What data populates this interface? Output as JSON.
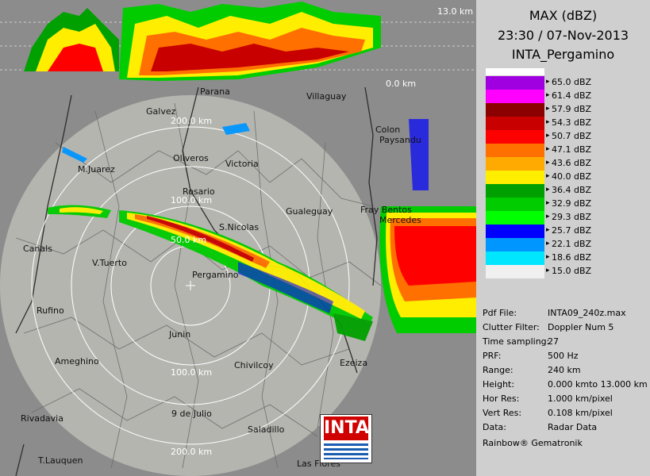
{
  "header": {
    "product": "MAX (dBZ)",
    "datetime": "23:30 / 07-Nov-2013",
    "station": "INTA_Pergamino"
  },
  "legend": [
    {
      "label": "65.0 dBZ",
      "color": "#a000e0"
    },
    {
      "label": "61.4 dBZ",
      "color": "#ff00ff"
    },
    {
      "label": "57.9 dBZ",
      "color": "#8b0000"
    },
    {
      "label": "54.3 dBZ",
      "color": "#c80000"
    },
    {
      "label": "50.7 dBZ",
      "color": "#ff0000"
    },
    {
      "label": "47.1 dBZ",
      "color": "#ff7000"
    },
    {
      "label": "43.6 dBZ",
      "color": "#ffaa00"
    },
    {
      "label": "40.0 dBZ",
      "color": "#ffee00"
    },
    {
      "label": "36.4 dBZ",
      "color": "#00a000"
    },
    {
      "label": "32.9 dBZ",
      "color": "#00cc00"
    },
    {
      "label": "29.3 dBZ",
      "color": "#00ff00"
    },
    {
      "label": "25.7 dBZ",
      "color": "#0000ff"
    },
    {
      "label": "22.1 dBZ",
      "color": "#0096ff"
    },
    {
      "label": "18.6 dBZ",
      "color": "#00e6ff"
    },
    {
      "label": "15.0 dBZ",
      "color": "#f0f0f0"
    }
  ],
  "info": [
    {
      "key": "Pdf File:",
      "value": "INTA09_240z.max"
    },
    {
      "key": "Clutter Filter:",
      "value": "Doppler Num 5"
    },
    {
      "key": "Time sampling:",
      "value": "27"
    },
    {
      "key": "PRF:",
      "value": "500 Hz"
    },
    {
      "key": "Range:",
      "value": "240 km"
    },
    {
      "key": "Height:",
      "value": "0.000 kmto 13.000 km"
    },
    {
      "key": "Hor Res:",
      "value": "1.000 km/pixel"
    },
    {
      "key": "Vert Res:",
      "value": "0.108 km/pixel"
    },
    {
      "key": "Data:",
      "value": "Radar Data"
    }
  ],
  "footer": "Rainbow® Gematronik",
  "profile": {
    "top_label": "13.0 km",
    "bottom_label": "0.0 km"
  },
  "rings": [
    "200.0 km",
    "100.0 km",
    "50.0 km",
    "100.0 km",
    "200.0 km"
  ],
  "cities": [
    "Parana",
    "Villaguay",
    "Galvez",
    "Colon",
    "Paysandu",
    "Oliveros",
    "Victoria",
    "M.Juarez",
    "Rosario",
    "Gualeguay",
    "Fray Bentos",
    "Mercedes",
    "S.Nicolas",
    "Canals",
    "V.Tuerto",
    "Pergamino",
    "Rufino",
    "Junin",
    "Ameghino",
    "Chivilcoy",
    "Ezeiza",
    "9 de Julio",
    "Rivadavia",
    "Saladillo",
    "T.Lauquen",
    "Las Flores"
  ],
  "logo": "INTA"
}
